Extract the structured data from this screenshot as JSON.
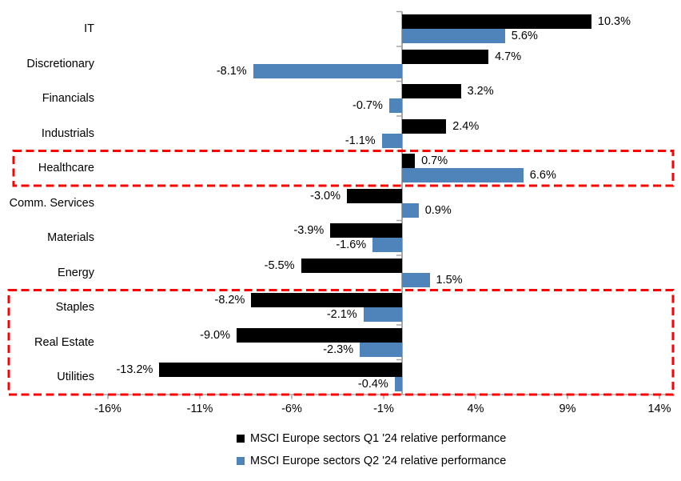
{
  "chart_data": {
    "type": "bar",
    "orientation": "horizontal",
    "title": "",
    "categories": [
      "IT",
      "Discretionary",
      "Financials",
      "Industrials",
      "Healthcare",
      "Comm. Services",
      "Materials",
      "Energy",
      "Staples",
      "Real Estate",
      "Utilities"
    ],
    "series": [
      {
        "name": "MSCI Europe sectors Q1 '24 relative performance",
        "color": "#000000",
        "values": [
          10.3,
          4.7,
          3.2,
          2.4,
          0.7,
          -3.0,
          -3.9,
          -5.5,
          -8.2,
          -9.0,
          -13.2
        ],
        "labels": [
          "10.3%",
          "4.7%",
          "3.2%",
          "2.4%",
          "0.7%",
          "-3.0%",
          "-3.9%",
          "-5.5%",
          "-8.2%",
          "-9.0%",
          "-13.2%"
        ]
      },
      {
        "name": "MSCI Europe sectors Q2 '24 relative performance",
        "color": "#4E84BA",
        "values": [
          5.6,
          -8.1,
          -0.7,
          -1.1,
          6.6,
          0.9,
          -1.6,
          1.5,
          -2.1,
          -2.3,
          -0.4
        ],
        "labels": [
          "5.6%",
          "-8.1%",
          "-0.7%",
          "-1.1%",
          "6.6%",
          "0.9%",
          "-1.6%",
          "1.5%",
          "-2.1%",
          "-2.3%",
          "-0.4%"
        ]
      }
    ],
    "x_axis": {
      "tick_labels": [
        "-16%",
        "-11%",
        "-6%",
        "-1%",
        "4%",
        "9%",
        "14%"
      ],
      "tick_values": [
        -16,
        -11,
        -6,
        -1,
        4,
        9,
        14
      ],
      "min": -17.4,
      "max": 14.6,
      "unit": "%"
    },
    "grid": false,
    "legend_position": "bottom",
    "highlight_boxes": [
      {
        "categories": [
          "Healthcare"
        ],
        "style": "dashed",
        "color": "#FF0000"
      },
      {
        "categories": [
          "Staples",
          "Real Estate",
          "Utilities"
        ],
        "style": "dashed",
        "color": "#FF0000"
      }
    ]
  },
  "colors": {
    "q1_bar": "#000000",
    "q2_bar": "#4E84BA",
    "axis": "#A6A6A6",
    "highlight": "#FF0000",
    "background": "#FFFFFF",
    "text": "#000000"
  }
}
